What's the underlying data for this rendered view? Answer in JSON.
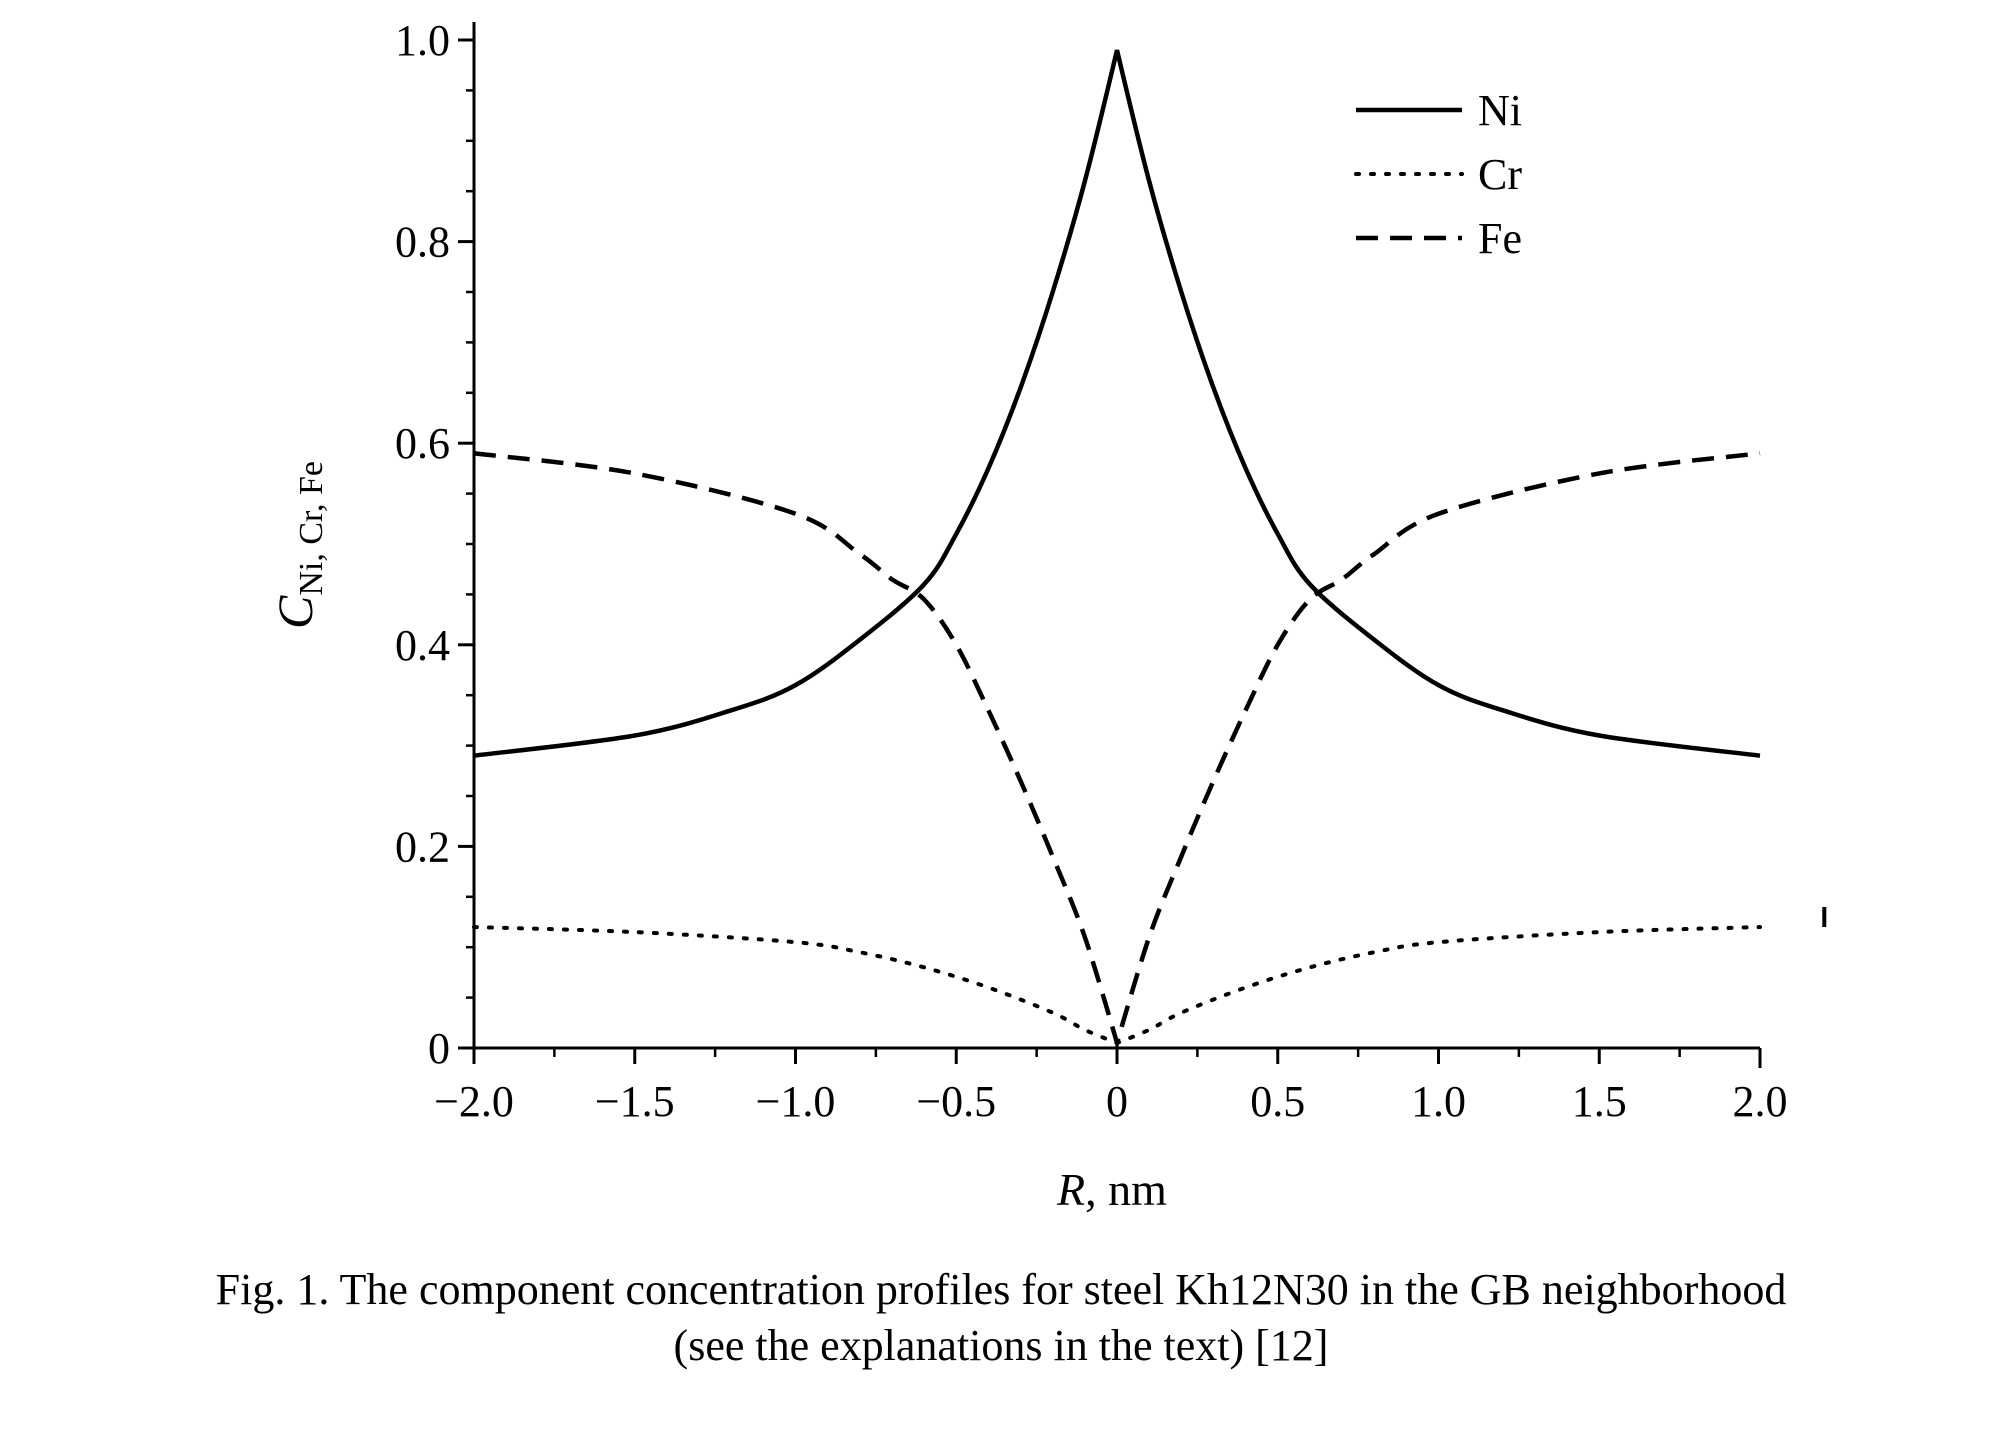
{
  "chart_data": {
    "type": "line",
    "xlabel": "R, nm",
    "ylabel": "C",
    "ylabel_sub": "Ni, Cr, Fe",
    "xlim": [
      -2.0,
      2.0
    ],
    "ylim": [
      0,
      1.0
    ],
    "x_ticks": [
      -2.0,
      -1.5,
      -1.0,
      -0.5,
      0,
      0.5,
      1.0,
      1.5,
      2.0
    ],
    "x_tick_labels": [
      "−2.0",
      "−1.5",
      "−1.0",
      "−0.5",
      "0",
      "0.5",
      "1.0",
      "1.5",
      "2.0"
    ],
    "y_ticks": [
      0,
      0.2,
      0.4,
      0.6,
      0.8,
      1.0
    ],
    "y_tick_labels": [
      "0",
      "0.2",
      "0.4",
      "0.6",
      "0.8",
      "1.0"
    ],
    "grid": false,
    "legend_position": "top-right",
    "series": [
      {
        "name": "Ni",
        "style": "solid",
        "x": [
          -2.0,
          -1.5,
          -1.2,
          -1.0,
          -0.8,
          -0.6,
          -0.5,
          -0.4,
          -0.3,
          -0.2,
          -0.1,
          0,
          0.1,
          0.2,
          0.3,
          0.4,
          0.5,
          0.6,
          0.8,
          1.0,
          1.2,
          1.5,
          2.0
        ],
        "y": [
          0.29,
          0.31,
          0.335,
          0.36,
          0.405,
          0.46,
          0.51,
          0.575,
          0.655,
          0.75,
          0.86,
          0.99,
          0.86,
          0.75,
          0.655,
          0.575,
          0.51,
          0.46,
          0.405,
          0.36,
          0.335,
          0.31,
          0.29
        ]
      },
      {
        "name": "Cr",
        "style": "dotted",
        "x": [
          -2.0,
          -1.5,
          -1.0,
          -0.8,
          -0.6,
          -0.4,
          -0.2,
          -0.1,
          0,
          0.1,
          0.2,
          0.4,
          0.6,
          0.8,
          1.0,
          1.5,
          2.0
        ],
        "y": [
          0.12,
          0.115,
          0.105,
          0.095,
          0.08,
          0.06,
          0.035,
          0.018,
          0.005,
          0.018,
          0.035,
          0.06,
          0.08,
          0.095,
          0.105,
          0.115,
          0.12
        ],
        "extra_mark": {
          "x": 2.2,
          "y": 0.13
        }
      },
      {
        "name": "Fe",
        "style": "dashed",
        "x": [
          -2.0,
          -1.5,
          -1.0,
          -0.8,
          -0.7,
          -0.6,
          -0.5,
          -0.4,
          -0.3,
          -0.2,
          -0.1,
          0,
          0.1,
          0.2,
          0.3,
          0.4,
          0.5,
          0.6,
          0.7,
          0.8,
          1.0,
          1.5,
          2.0
        ],
        "y": [
          0.59,
          0.57,
          0.53,
          0.49,
          0.465,
          0.445,
          0.4,
          0.335,
          0.265,
          0.19,
          0.11,
          0.005,
          0.11,
          0.19,
          0.265,
          0.335,
          0.4,
          0.445,
          0.465,
          0.49,
          0.53,
          0.57,
          0.59
        ]
      }
    ]
  },
  "caption": {
    "line1": "Fig. 1. The component concentration profiles for steel Kh12N30 in the GB neighborhood",
    "line2": "(see the explanations in the text) [12]"
  }
}
